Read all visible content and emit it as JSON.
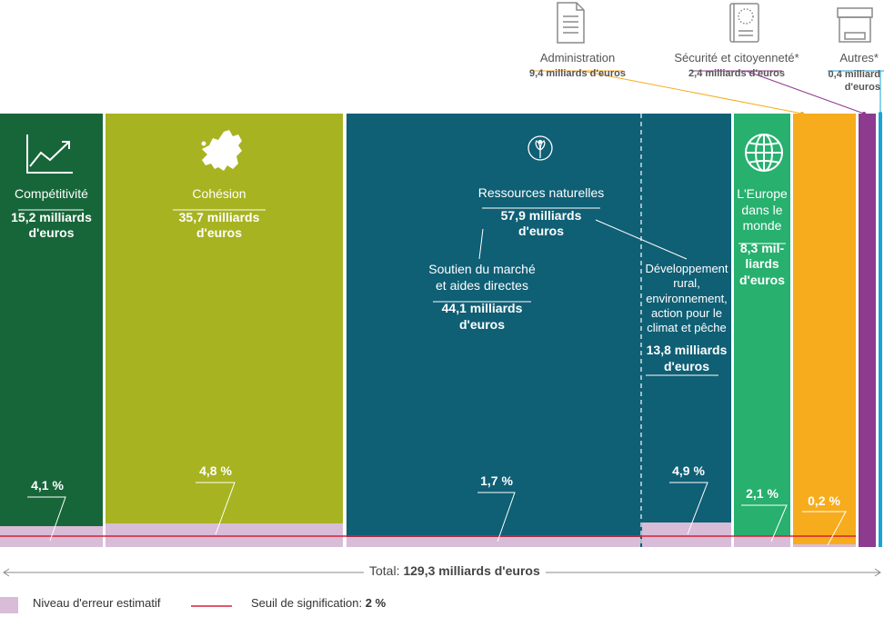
{
  "chart_data": {
    "type": "bar",
    "categories": [
      "Compétitivité",
      "Cohésion",
      "Ressources naturelles",
      "L'Europe dans le monde",
      "Administration",
      "Sécurité et citoyenneté*",
      "Autres*"
    ],
    "values": [
      15.2,
      35.7,
      57.9,
      8.3,
      9.4,
      2.4,
      0.4
    ],
    "error_rates": [
      "4,1 %",
      "4,8 %",
      "1,7 %",
      "2,1 %",
      "0,2 %"
    ],
    "total_label": "Total:",
    "total_value": "129,3 milliards d'euros",
    "threshold": 2,
    "colors": {
      "competitivite": "#17663a",
      "cohesion": "#a7b320",
      "ressources": "#0f5f75",
      "europe": "#27b06e",
      "administration": "#f7ac1d",
      "securite": "#8c3b8f",
      "autres": "#1ba3d6",
      "error": "#d8bcd8",
      "threshold": "#d6203a"
    }
  },
  "labels": {
    "competitivite": {
      "name": "Compétitivité",
      "value": "15,2 milliards d'euros"
    },
    "cohesion": {
      "name": "Cohésion",
      "value": "35,7 milliards d'euros"
    },
    "ressources": {
      "name": "Ressources naturelles",
      "value": "57,9 milliards d'euros"
    },
    "soutien": {
      "name": "Soutien du marché et aides directes",
      "value": "44,1 milliards d'euros"
    },
    "developpement": {
      "name": "Développement rural, environnement, action pour le climat et pêche",
      "value": "13,8 milliards d'euros"
    },
    "europe": {
      "name": "L'Europe dans le monde",
      "value": "8,3 mil-liards d'euros"
    },
    "administration": {
      "name": "Administration",
      "value": "9,4 milliards d'euros"
    },
    "securite": {
      "name": "Sécurité et citoyenneté*",
      "value": "2,4 milliards d'euros"
    },
    "autres": {
      "name": "Autres*",
      "value": "0,4 milliard d'euros"
    }
  },
  "pcts": {
    "competitivite": "4,1 %",
    "cohesion": "4,8 %",
    "ressources": "1,7 %",
    "developpement": "4,9 %",
    "europe": "2,1 %",
    "administration": "0,2 %"
  },
  "legend": {
    "error_label": "Niveau d'erreur estimatif",
    "threshold_label": "Seuil de signification:",
    "threshold_value": "2 %"
  },
  "icons": [
    "chart-up-icon",
    "europe-map-icon",
    "plant-icon",
    "globe-icon",
    "document-icon",
    "passport-icon",
    "box-icon"
  ]
}
